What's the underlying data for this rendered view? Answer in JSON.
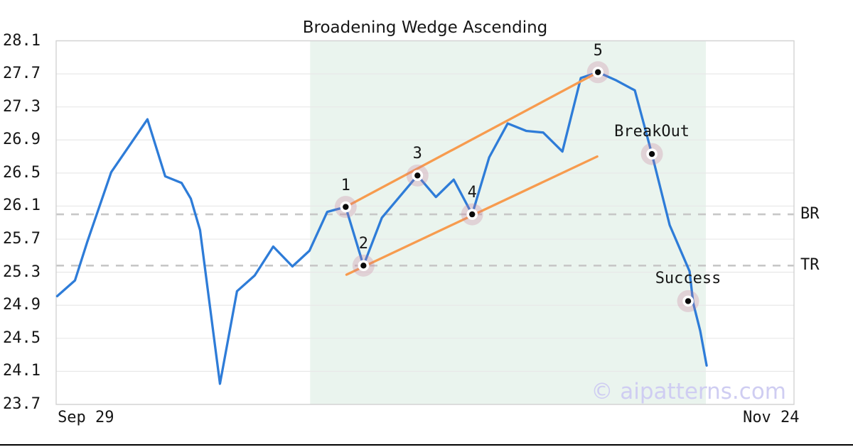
{
  "chart_data": {
    "type": "line",
    "title": "Broadening Wedge Ascending",
    "ylim": [
      23.7,
      28.1
    ],
    "y_ticks": [
      "28.1",
      "27.7",
      "27.3",
      "26.9",
      "26.5",
      "26.1",
      "25.7",
      "25.3",
      "24.9",
      "24.5",
      "24.1",
      "23.7"
    ],
    "x_ticks": [
      {
        "label": "Sep 29",
        "t": 0.002,
        "anchor": "start"
      },
      {
        "label": "Nov 24",
        "t": 0.969,
        "anchor": "middle"
      }
    ],
    "grid": true,
    "price_series": {
      "name": "price",
      "points": [
        [
          0.0014,
          25.01
        ],
        [
          0.0255,
          25.2
        ],
        [
          0.0419,
          25.66
        ],
        [
          0.0746,
          26.51
        ],
        [
          0.1237,
          27.15
        ],
        [
          0.1478,
          26.46
        ],
        [
          0.17,
          26.38
        ],
        [
          0.1825,
          26.19
        ],
        [
          0.195,
          25.81
        ],
        [
          0.222,
          23.95
        ],
        [
          0.2451,
          25.07
        ],
        [
          0.2691,
          25.26
        ],
        [
          0.2942,
          25.61
        ],
        [
          0.3202,
          25.37
        ],
        [
          0.3433,
          25.56
        ],
        [
          0.3674,
          26.03
        ],
        [
          0.3924,
          26.09
        ],
        [
          0.4165,
          25.38
        ],
        [
          0.4415,
          25.96
        ],
        [
          0.4897,
          26.47
        ],
        [
          0.5147,
          26.21
        ],
        [
          0.5388,
          26.42
        ],
        [
          0.5638,
          26.0
        ],
        [
          0.5869,
          26.69
        ],
        [
          0.612,
          27.1
        ],
        [
          0.637,
          27.01
        ],
        [
          0.6601,
          26.99
        ],
        [
          0.6861,
          26.76
        ],
        [
          0.7111,
          27.65
        ],
        [
          0.7343,
          27.72
        ],
        [
          0.7593,
          27.62
        ],
        [
          0.7843,
          27.5
        ],
        [
          0.8074,
          26.73
        ],
        [
          0.8315,
          25.87
        ],
        [
          0.8537,
          25.41
        ],
        [
          0.8585,
          25.31
        ],
        [
          0.8633,
          24.93
        ],
        [
          0.8729,
          24.59
        ],
        [
          0.8816,
          24.17
        ]
      ]
    },
    "pattern_points": [
      {
        "label": "1",
        "t": 0.3924,
        "v": 26.09
      },
      {
        "label": "2",
        "t": 0.4165,
        "v": 25.38
      },
      {
        "label": "3",
        "t": 0.4897,
        "v": 26.47
      },
      {
        "label": "4",
        "t": 0.5638,
        "v": 26.0
      },
      {
        "label": "5",
        "t": 0.7343,
        "v": 27.72
      }
    ],
    "annotations": [
      {
        "label": "BreakOut",
        "t": 0.8074,
        "v": 26.73
      },
      {
        "label": "Success",
        "t": 0.8565,
        "v": 24.95
      }
    ],
    "levels": [
      {
        "label": "BR",
        "value": 26.0
      },
      {
        "label": "TR",
        "value": 25.38
      }
    ],
    "trendlines": {
      "upper": {
        "t1": 0.3924,
        "v1": 26.09,
        "t2": 0.7343,
        "v2": 27.72
      },
      "lower": {
        "t1": 0.3935,
        "v1": 25.27,
        "t2": 0.7333,
        "v2": 26.7
      }
    },
    "pattern_zone": {
      "t1": 0.3442,
      "t2": 0.8805
    },
    "watermark": "© aipatterns.com",
    "colors": {
      "price_line": "#2e7cd8",
      "trendline": "#f79b4e",
      "pattern_zone_fill": "#eaf4ee",
      "level_dash": "#c7c7c7",
      "gridline": "#e8e8e8",
      "plot_border": "#d3d3d3",
      "marker_dot": "#0a0a0a",
      "marker_halo": "rgba(201,120,150,0.27)",
      "text": "#161616",
      "watermark_color": "#cfcdf2"
    }
  }
}
